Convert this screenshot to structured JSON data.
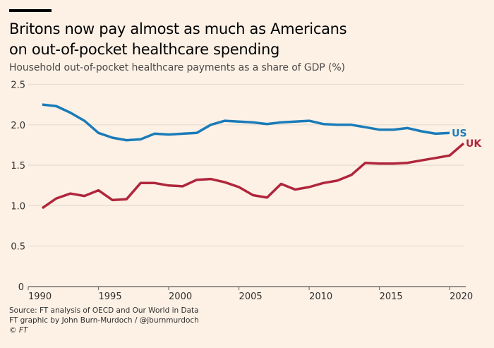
{
  "header": {
    "title_line1": "Britons now pay almost as much as Americans",
    "title_line2": "on out-of-pocket healthcare spending",
    "subtitle": "Household out-of-pocket healthcare payments as a share of GDP (%)"
  },
  "footer": {
    "source": "Source: FT analysis of OECD and Our World in Data",
    "credit": "FT graphic by John Burn-Murdoch / @jburnmurdoch",
    "copyright_symbol": "©",
    "copyright_name": "FT"
  },
  "colors": {
    "background": "#fdf1e6",
    "us": "#1a7bb8",
    "uk": "#b0263c",
    "grid": "#e8dcd0",
    "axis": "#7a7470"
  },
  "chart_data": {
    "type": "line",
    "title": "Britons now pay almost as much as Americans on out-of-pocket healthcare spending",
    "subtitle": "Household out-of-pocket healthcare payments as a share of GDP (%)",
    "xlabel": "",
    "ylabel": "",
    "xlim": [
      1990,
      2021
    ],
    "ylim": [
      0,
      2.5
    ],
    "xticks": [
      1990,
      1995,
      2000,
      2005,
      2010,
      2015,
      2020
    ],
    "xtick_labels": [
      "1990",
      "1995",
      "2000",
      "2005",
      "2010",
      "2015",
      "2020"
    ],
    "yticks": [
      0,
      0.5,
      1.0,
      1.5,
      2.0,
      2.5
    ],
    "ytick_labels": [
      "0",
      "0.5",
      "1.0",
      "1.5",
      "2.0",
      "2.5"
    ],
    "grid": true,
    "legend": "direct-labels-right",
    "series": [
      {
        "name": "US",
        "label": "US",
        "color": "#1a7bb8",
        "x": [
          1991,
          1992,
          1993,
          1994,
          1995,
          1996,
          1997,
          1998,
          1999,
          2000,
          2001,
          2002,
          2003,
          2004,
          2005,
          2006,
          2007,
          2008,
          2009,
          2010,
          2011,
          2012,
          2013,
          2014,
          2015,
          2016,
          2017,
          2018,
          2019,
          2020
        ],
        "values": [
          2.25,
          2.23,
          2.15,
          2.05,
          1.9,
          1.84,
          1.81,
          1.82,
          1.89,
          1.88,
          1.89,
          1.9,
          2.0,
          2.05,
          2.04,
          2.03,
          2.01,
          2.03,
          2.04,
          2.05,
          2.01,
          2.0,
          2.0,
          1.97,
          1.94,
          1.94,
          1.96,
          1.92,
          1.89,
          1.9
        ]
      },
      {
        "name": "UK",
        "label": "UK",
        "color": "#b0263c",
        "x": [
          1991,
          1992,
          1993,
          1994,
          1995,
          1996,
          1997,
          1998,
          1999,
          2000,
          2001,
          2002,
          2003,
          2004,
          2005,
          2006,
          2007,
          2008,
          2009,
          2010,
          2011,
          2012,
          2013,
          2014,
          2015,
          2016,
          2017,
          2018,
          2019,
          2020,
          2021
        ],
        "values": [
          0.97,
          1.09,
          1.15,
          1.12,
          1.19,
          1.07,
          1.08,
          1.28,
          1.28,
          1.25,
          1.24,
          1.32,
          1.33,
          1.29,
          1.23,
          1.13,
          1.1,
          1.27,
          1.2,
          1.23,
          1.28,
          1.31,
          1.38,
          1.53,
          1.52,
          1.52,
          1.53,
          1.56,
          1.59,
          1.62,
          1.77
        ]
      }
    ]
  }
}
